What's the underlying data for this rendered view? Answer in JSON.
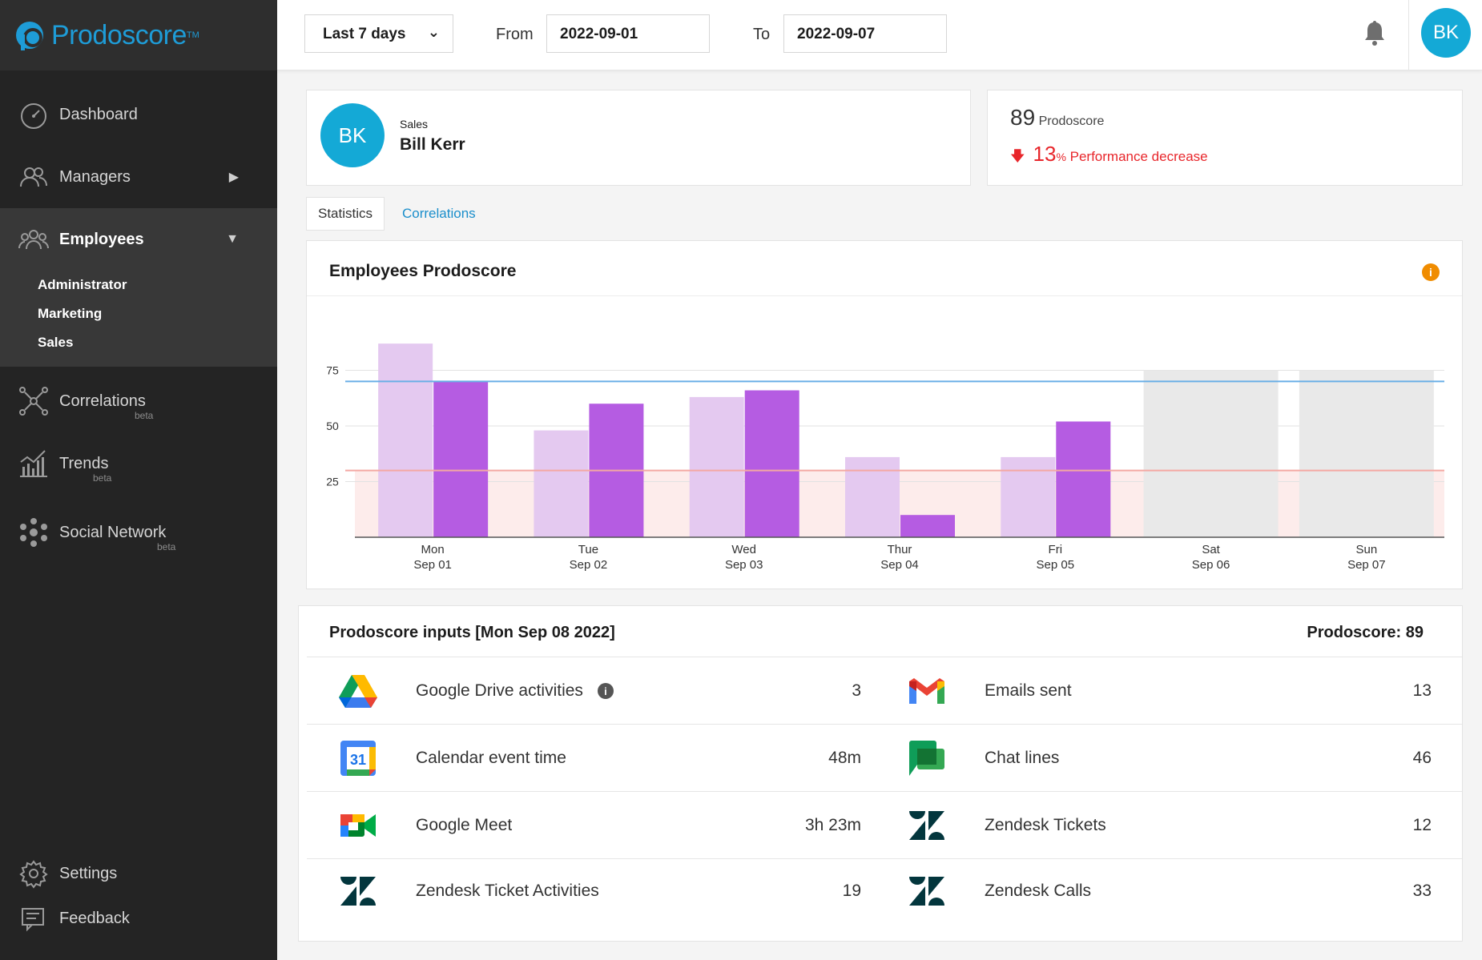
{
  "app": {
    "name": "Prodoscore",
    "tm": "TM"
  },
  "sidebar": {
    "items": [
      {
        "label": "Dashboard"
      },
      {
        "label": "Managers"
      },
      {
        "label": "Employees"
      },
      {
        "label": "Correlations",
        "badge": "beta"
      },
      {
        "label": "Trends",
        "badge": "beta"
      },
      {
        "label": "Social Network",
        "badge": "beta"
      }
    ],
    "employee_groups": [
      "Administrator",
      "Marketing",
      "Sales"
    ],
    "bottom": [
      {
        "label": "Settings"
      },
      {
        "label": "Feedback"
      }
    ]
  },
  "toolbar": {
    "range": "Last 7 days",
    "from_label": "From",
    "from_value": "2022-09-01",
    "to_label": "To",
    "to_value": "2022-09-07",
    "user_initials": "BK"
  },
  "profile": {
    "initials": "BK",
    "department": "Sales",
    "name": "Bill Kerr"
  },
  "score": {
    "value": "89",
    "label": "Prodoscore",
    "change": "13",
    "change_unit": "%",
    "change_label": "Performance decrease",
    "change_color": "#e8262b"
  },
  "tabs": [
    {
      "label": "Statistics"
    },
    {
      "label": "Correlations"
    }
  ],
  "chart_data": {
    "type": "bar",
    "title": "Employees Prodoscore",
    "categories": [
      {
        "day": "Mon",
        "date": "Sep 01"
      },
      {
        "day": "Tue",
        "date": "Sep 02"
      },
      {
        "day": "Wed",
        "date": "Sep 03"
      },
      {
        "day": "Thur",
        "date": "Sep 04"
      },
      {
        "day": "Fri",
        "date": "Sep 05"
      },
      {
        "day": "Sat",
        "date": "Sep 06"
      },
      {
        "day": "Sun",
        "date": "Sep 07"
      }
    ],
    "series": [
      {
        "values": [
          87,
          48,
          63,
          36,
          36,
          null,
          null
        ],
        "color": "#e4c9f0"
      },
      {
        "values": [
          70,
          60,
          66,
          10,
          52,
          null,
          null
        ],
        "color": "#b55ce2"
      }
    ],
    "weekend_placeholder": 75,
    "yticks": [
      25,
      50,
      75
    ],
    "ylim": [
      0,
      90
    ],
    "reference_lines": [
      {
        "value": 70,
        "color": "#6aafe6"
      },
      {
        "value": 30,
        "color": "#f4a8a3"
      }
    ],
    "grid": true,
    "colors": {
      "weekend": "#e9e9e9",
      "low_band": "#fdeceb"
    }
  },
  "inputs": {
    "title": "Prodoscore inputs [Mon Sep 08 2022]",
    "score_label": "Prodoscore: 89",
    "rows": [
      [
        {
          "icon": "google-drive-icon",
          "label": "Google Drive activities",
          "value": "3",
          "info": true
        },
        {
          "icon": "gmail-icon",
          "label": "Emails sent",
          "value": "13"
        }
      ],
      [
        {
          "icon": "google-calendar-icon",
          "label": "Calendar event time",
          "value": "48m",
          "calendar_day": "31"
        },
        {
          "icon": "google-chat-icon",
          "label": "Chat lines",
          "value": "46"
        }
      ],
      [
        {
          "icon": "google-meet-icon",
          "label": "Google Meet",
          "value": "3h 23m"
        },
        {
          "icon": "zendesk-icon",
          "label": "Zendesk Tickets",
          "value": "12"
        }
      ],
      [
        {
          "icon": "zendesk-icon",
          "label": "Zendesk Ticket Activities",
          "value": "19"
        },
        {
          "icon": "zendesk-icon",
          "label": "Zendesk Calls",
          "value": "33"
        }
      ]
    ]
  }
}
